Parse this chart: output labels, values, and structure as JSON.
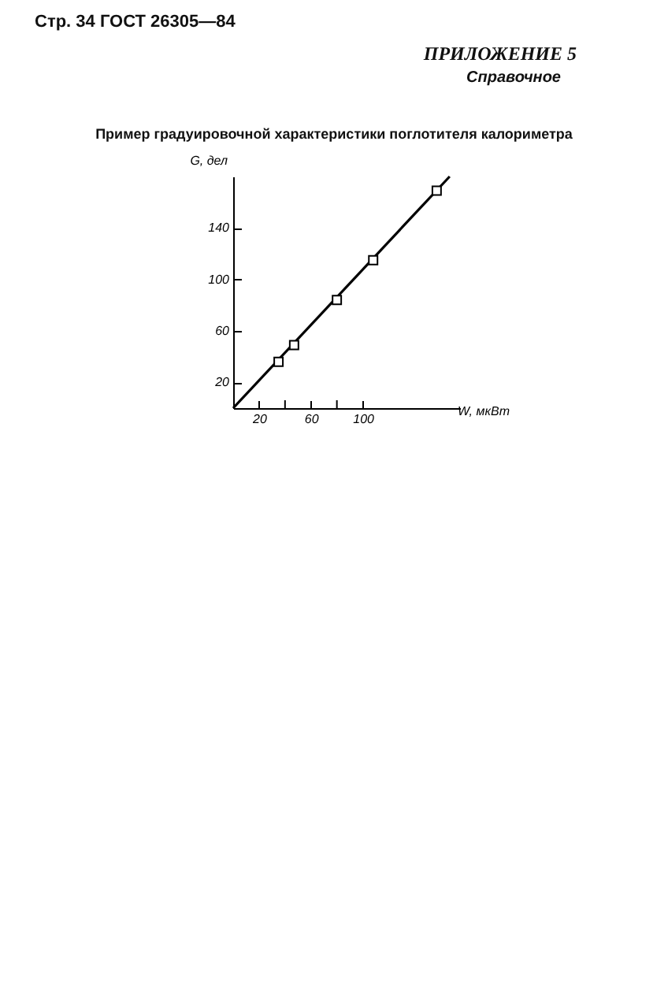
{
  "chart_data": {
    "type": "scatter",
    "title": "Пример градуировочной характеристики поглотителя калориметра",
    "annotations": [
      "Стр. 34 ГОСТ 26305—84",
      "ПРИЛОЖЕНИЕ 5",
      "Справочное"
    ],
    "xlabel": "W, мкВт",
    "ylabel": "G, дел",
    "xlim": [
      0,
      175
    ],
    "ylim": [
      0,
      180
    ],
    "xticks": [
      20,
      {
        "value": 40,
        "label": null
      },
      60,
      {
        "value": 80,
        "label": null
      },
      100
    ],
    "yticks": [
      20,
      60,
      100,
      140
    ],
    "marker": "square",
    "series": [
      {
        "type": "scatter",
        "color": "#000000",
        "x": [
          35,
          47,
          80,
          108,
          157
        ],
        "values": [
          36,
          49,
          84,
          115,
          169
        ]
      },
      {
        "type": "line",
        "color": "#000000",
        "x": [
          0,
          167
        ],
        "values": [
          0,
          180
        ],
        "marker": "none"
      }
    ]
  }
}
